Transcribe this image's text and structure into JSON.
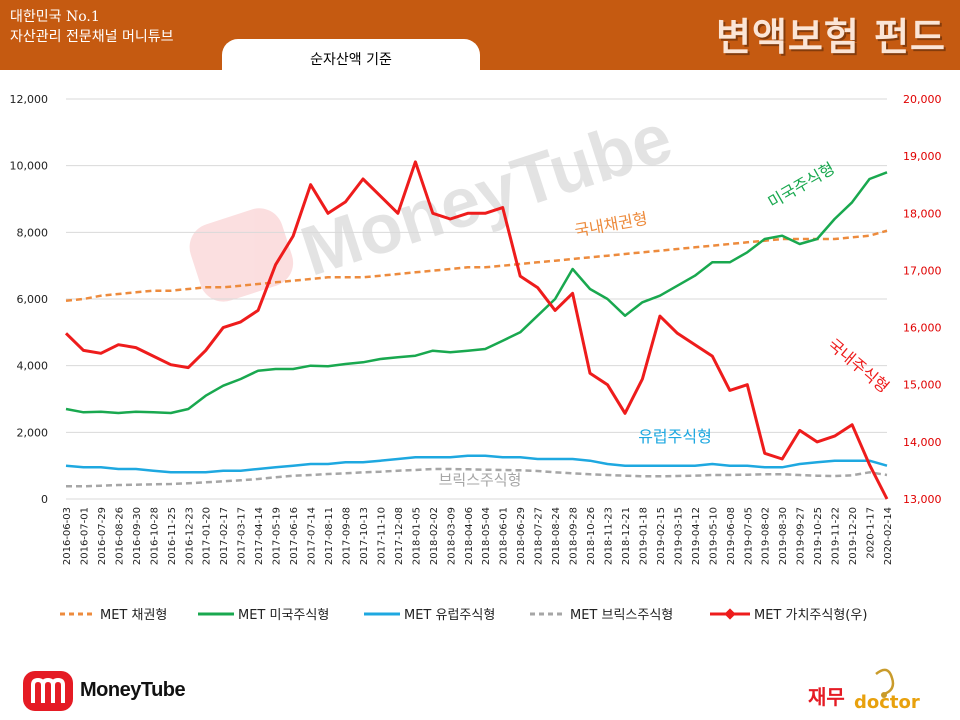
{
  "header": {
    "brand_line1": "대한민국 No.1",
    "brand_line2": "자산관리 전문채널 머니튜브",
    "title": "변액보험 펀드",
    "tab_label": "순자산액 기준"
  },
  "footer": {
    "logo_text": "MoneyTube",
    "partner_hangul": "재무",
    "partner_word": "doctor"
  },
  "watermark": "MoneyTube",
  "colors": {
    "header_bg": "#c55a11",
    "bond": "#ed8b3d",
    "us": "#19a84f",
    "eu": "#1ea8e0",
    "brics": "#a6a6a6",
    "value": "#ee1c1c",
    "right_axis": "#e00000"
  },
  "chart_data": {
    "type": "line",
    "y_left": {
      "ylim": [
        0,
        12000
      ],
      "ticks": [
        "0",
        "2,000",
        "4,000",
        "6,000",
        "8,000",
        "10,000",
        "12,000"
      ]
    },
    "y_right": {
      "ylim": [
        13000,
        20000
      ],
      "ticks": [
        "13,000",
        "14,000",
        "15,000",
        "16,000",
        "17,000",
        "18,000",
        "19,000",
        "20,000"
      ]
    },
    "x_ticks": [
      "2016-06-03",
      "2016-07-01",
      "2016-07-29",
      "2016-08-26",
      "2016-09-30",
      "2016-10-28",
      "2016-11-25",
      "2016-12-23",
      "2017-01-20",
      "2017-02-17",
      "2017-03-17",
      "2017-04-14",
      "2017-05-19",
      "2017-06-16",
      "2017-07-14",
      "2017-08-11",
      "2017-09-08",
      "2017-10-13",
      "2017-11-10",
      "2017-12-08",
      "2018-01-05",
      "2018-02-02",
      "2018-03-09",
      "2018-04-06",
      "2018-05-04",
      "2018-06-01",
      "2018-06-29",
      "2018-07-27",
      "2018-08-24",
      "2018-09-28",
      "2018-10-26",
      "2018-11-23",
      "2018-12-21",
      "2019-01-18",
      "2019-02-15",
      "2019-03-15",
      "2019-04-12",
      "2019-05-10",
      "2019-06-08",
      "2019-07-05",
      "2019-08-02",
      "2019-08-30",
      "2019-09-27",
      "2019-10-25",
      "2019-11-22",
      "2019-12-20",
      "2020-1-17",
      "2020-02-14"
    ],
    "grid": true,
    "legend_position": "bottom",
    "series": [
      {
        "name": "MET 채권형",
        "axis": "left",
        "style": "dashed",
        "values": [
          5950,
          6000,
          6100,
          6150,
          6200,
          6250,
          6250,
          6300,
          6350,
          6350,
          6400,
          6450,
          6500,
          6550,
          6600,
          6650,
          6650,
          6650,
          6700,
          6750,
          6800,
          6850,
          6900,
          6950,
          6950,
          7000,
          7050,
          7100,
          7150,
          7200,
          7250,
          7300,
          7350,
          7400,
          7450,
          7500,
          7550,
          7600,
          7650,
          7700,
          7750,
          7800,
          7800,
          7800,
          7800,
          7850,
          7900,
          8050
        ]
      },
      {
        "name": "MET 미국주식형",
        "axis": "left",
        "style": "solid",
        "values": [
          2700,
          2600,
          2620,
          2580,
          2620,
          2600,
          2580,
          2700,
          3100,
          3400,
          3600,
          3850,
          3900,
          3900,
          4000,
          3980,
          4050,
          4100,
          4200,
          4250,
          4300,
          4450,
          4400,
          4450,
          4500,
          4750,
          5000,
          5500,
          6000,
          6900,
          6300,
          6000,
          5500,
          5900,
          6100,
          6400,
          6700,
          7100,
          7100,
          7400,
          7800,
          7900,
          7650,
          7800,
          8400,
          8900,
          9600,
          9800
        ]
      },
      {
        "name": "MET 유럽주식형",
        "axis": "left",
        "style": "solid",
        "values": [
          1000,
          950,
          950,
          900,
          900,
          850,
          800,
          800,
          800,
          850,
          850,
          900,
          950,
          1000,
          1050,
          1050,
          1100,
          1100,
          1150,
          1200,
          1250,
          1250,
          1250,
          1300,
          1300,
          1250,
          1250,
          1200,
          1200,
          1200,
          1150,
          1050,
          1000,
          1000,
          1000,
          1000,
          1000,
          1050,
          1000,
          1000,
          950,
          950,
          1050,
          1100,
          1150,
          1150,
          1150,
          1000
        ]
      },
      {
        "name": "MET 브릭스주식형",
        "axis": "left",
        "style": "dashed",
        "values": [
          380,
          380,
          400,
          420,
          430,
          440,
          450,
          470,
          500,
          530,
          560,
          600,
          650,
          700,
          720,
          750,
          770,
          800,
          820,
          850,
          870,
          900,
          900,
          890,
          880,
          870,
          860,
          840,
          800,
          770,
          740,
          720,
          700,
          680,
          680,
          690,
          700,
          720,
          720,
          730,
          740,
          740,
          720,
          700,
          690,
          710,
          800,
          720
        ]
      },
      {
        "name": "MET 가치주식형(우)",
        "axis": "right",
        "style": "solid-marker",
        "values": [
          15900,
          15600,
          15550,
          15700,
          15650,
          15500,
          15350,
          15300,
          15600,
          16000,
          16100,
          16300,
          17100,
          17600,
          18500,
          18000,
          18200,
          18600,
          18300,
          18000,
          18900,
          18000,
          17900,
          18000,
          18000,
          18100,
          16900,
          16700,
          16300,
          16600,
          15200,
          15000,
          14500,
          15100,
          16200,
          15900,
          15700,
          15500,
          14900,
          15000,
          13800,
          13700,
          14200,
          14000,
          14100,
          14300,
          13600,
          13000
        ]
      }
    ],
    "annotations": [
      {
        "text": "국내채권형",
        "series": "MET 채권형"
      },
      {
        "text": "미국주식형",
        "series": "MET 미국주식형"
      },
      {
        "text": "유럽주식형",
        "series": "MET 유럽주식형"
      },
      {
        "text": "브릭스주식형",
        "series": "MET 브릭스주식형"
      },
      {
        "text": "국내주식형",
        "series": "MET 가치주식형(우)"
      }
    ]
  }
}
